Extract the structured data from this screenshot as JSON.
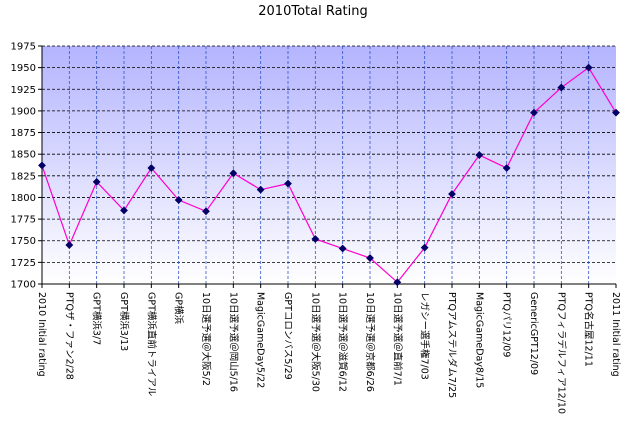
{
  "chart_data": {
    "type": "line",
    "title": "2010Total Rating",
    "xlabel": "",
    "ylabel": "",
    "ylim": [
      1700,
      1975
    ],
    "yticks": [
      1700,
      1725,
      1750,
      1775,
      1800,
      1825,
      1850,
      1875,
      1900,
      1925,
      1950,
      1975
    ],
    "grid": true,
    "legend": "none",
    "categories": [
      "2010 Initial rating",
      "PTQザ・ファン2/28",
      "GPT横浜3/7",
      "GPT横浜3/13",
      "GPT横浜直前トライアル",
      "GP横浜",
      "10日選予選＠大阪5/2",
      "10日選予選＠岡山5/16",
      "MagicGameDay5/22",
      "GPTコロンバス5/29",
      "10日選予選＠大阪5/30",
      "10日選予選＠滋賀6/12",
      "10日選予選＠京都6/26",
      "10日選予選＠直前7/1",
      "レガシー選手権7/03",
      "PTQアムステルダム7/25",
      "MagicGameDay8/15",
      "PTQパリ12/09",
      "GenericGPT12/09",
      "PTQフィラデルフィア12/10",
      "PTQ名古屋12/11",
      "2011 Initial rating"
    ],
    "series": [
      {
        "values": [
          1837,
          1745,
          1818,
          1785,
          1834,
          1797,
          1784,
          1828,
          1809,
          1816,
          1752,
          1741,
          1730,
          1702,
          1742,
          1804,
          1849,
          1834,
          1898,
          1927,
          1950,
          1898
        ],
        "color": "#ff00cc",
        "marker_color": "#000066"
      }
    ],
    "plot_bg_top": "#b4b4ff",
    "plot_bg_bottom": "#ffffff",
    "grid_color": "#000000",
    "vgrid_color": "#3355cc"
  }
}
